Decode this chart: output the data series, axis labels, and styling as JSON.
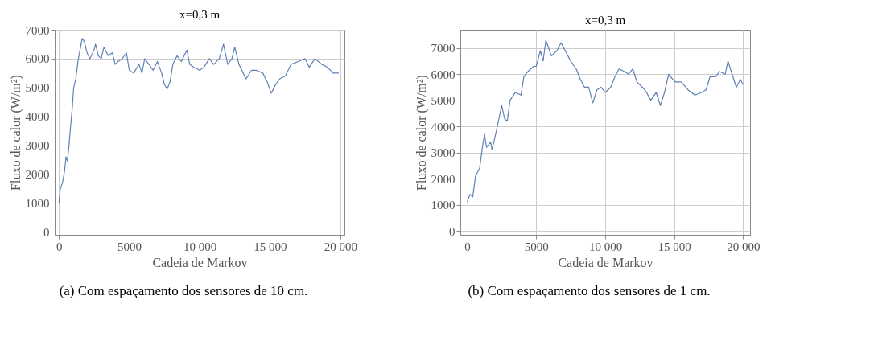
{
  "chart_data": [
    {
      "type": "line",
      "title": "x=0,3 m",
      "xlabel": "Cadeia de Markov",
      "ylabel": "Fluxo de calor (W/m²)",
      "annotations": [
        "(a) Com espaçamento dos sensores de 10 cm."
      ],
      "xlim": [
        -300,
        20300
      ],
      "ylim": [
        -100,
        7000
      ],
      "xticks": [
        0,
        5000,
        {
          "value": 10000,
          "label": "10 000"
        },
        {
          "value": 15000,
          "label": "15 000"
        },
        {
          "value": 20000,
          "label": "20 000"
        }
      ],
      "yticks": [
        0,
        1000,
        2000,
        3000,
        4000,
        5000,
        6000,
        7000
      ],
      "grid": true,
      "line_style": "solid",
      "series": [
        {
          "color": "#5e81b5",
          "x": [
            0,
            100,
            250,
            400,
            500,
            600,
            700,
            800,
            950,
            1050,
            1200,
            1350,
            1500,
            1650,
            1800,
            2000,
            2200,
            2500,
            2600,
            2800,
            3000,
            3200,
            3500,
            3800,
            4000,
            4200,
            4500,
            4800,
            5000,
            5300,
            5700,
            5900,
            6100,
            6400,
            6700,
            7000,
            7300,
            7500,
            7700,
            7900,
            8100,
            8400,
            8700,
            9100,
            9300,
            9600,
            10000,
            10300,
            10700,
            11000,
            11400,
            11700,
            12000,
            12300,
            12500,
            12800,
            13100,
            13300,
            13700,
            14000,
            14500,
            14800,
            15100,
            15400,
            15700,
            16100,
            16500,
            17000,
            17500,
            17800,
            18200,
            18700,
            19100,
            19500,
            19900
          ],
          "values": [
            1000,
            1500,
            1700,
            2100,
            2600,
            2450,
            2900,
            3500,
            4300,
            5000,
            5300,
            5900,
            6300,
            6700,
            6600,
            6200,
            6000,
            6300,
            6500,
            6100,
            6000,
            6400,
            6100,
            6200,
            5800,
            5900,
            6000,
            6200,
            5600,
            5500,
            5800,
            5500,
            6000,
            5800,
            5600,
            5900,
            5500,
            5100,
            4950,
            5200,
            5800,
            6100,
            5900,
            6300,
            5800,
            5700,
            5600,
            5700,
            6000,
            5800,
            6000,
            6500,
            5800,
            6000,
            6400,
            5800,
            5500,
            5300,
            5600,
            5600,
            5500,
            5200,
            4800,
            5100,
            5300,
            5400,
            5800,
            5900,
            6000,
            5700,
            6000,
            5800,
            5700,
            5500,
            5500
          ]
        }
      ]
    },
    {
      "type": "line",
      "title": "x=0,3 m",
      "xlabel": "Cadeia de Markov",
      "ylabel": "Fluxo de calor (W/m²)",
      "annotations": [
        "(b) Com espaçamento dos sensores de 1 cm."
      ],
      "xlim": [
        -500,
        20500
      ],
      "ylim": [
        -150,
        7700
      ],
      "xticks": [
        0,
        5000,
        {
          "value": 10000,
          "label": "10 000"
        },
        {
          "value": 15000,
          "label": "15 000"
        },
        {
          "value": 20000,
          "label": "20 000"
        }
      ],
      "yticks": [
        0,
        1000,
        2000,
        3000,
        4000,
        5000,
        6000,
        7000
      ],
      "grid": true,
      "line_style": "solid",
      "series": [
        {
          "color": "#5e81b5",
          "x": [
            0,
            200,
            400,
            600,
            900,
            1100,
            1250,
            1400,
            1700,
            1800,
            2100,
            2300,
            2500,
            2700,
            2900,
            3100,
            3500,
            3900,
            4100,
            4400,
            4800,
            5000,
            5300,
            5500,
            5700,
            5900,
            6100,
            6500,
            6800,
            7100,
            7500,
            7900,
            8200,
            8500,
            8800,
            9100,
            9400,
            9700,
            10000,
            10400,
            10700,
            11000,
            11400,
            11700,
            12000,
            12300,
            12700,
            13000,
            13300,
            13700,
            14000,
            14300,
            14600,
            14900,
            15100,
            15500,
            16000,
            16500,
            17000,
            17300,
            17600,
            18000,
            18300,
            18700,
            18900,
            19200,
            19500,
            19800,
            20000
          ],
          "values": [
            1100,
            1400,
            1300,
            2100,
            2400,
            3200,
            3700,
            3200,
            3400,
            3100,
            3800,
            4300,
            4800,
            4300,
            4200,
            5000,
            5300,
            5200,
            5900,
            6100,
            6300,
            6300,
            6900,
            6500,
            7300,
            7000,
            6700,
            6900,
            7200,
            6900,
            6500,
            6200,
            5800,
            5500,
            5500,
            4900,
            5400,
            5500,
            5300,
            5500,
            5900,
            6200,
            6100,
            6000,
            6200,
            5700,
            5500,
            5300,
            5000,
            5300,
            4800,
            5300,
            6000,
            5800,
            5700,
            5700,
            5400,
            5200,
            5300,
            5400,
            5900,
            5900,
            6100,
            6000,
            6500,
            6000,
            5500,
            5800,
            5600
          ]
        }
      ]
    }
  ]
}
